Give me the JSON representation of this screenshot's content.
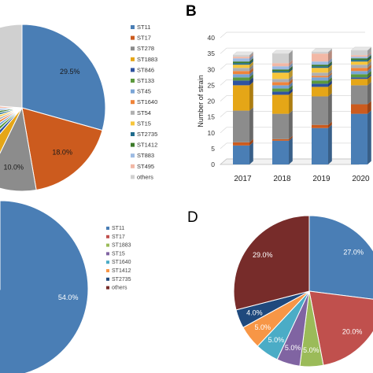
{
  "panels": {
    "b": {
      "letter": "B"
    },
    "d": {
      "letter": "D"
    }
  },
  "chart_data": [
    {
      "id": "A",
      "type": "pie",
      "slices": [
        {
          "label": "ST11",
          "value": 29.5,
          "color": "#4a7eb5",
          "show_label": "29.5%"
        },
        {
          "label": "ST17",
          "value": 18.0,
          "color": "#cc5b1e",
          "show_label": "18.0%"
        },
        {
          "label": "ST278",
          "value": 10.0,
          "color": "#8c8c8c",
          "show_label": "10.0%"
        },
        {
          "label": "ST1883",
          "value": 4.0,
          "color": "#e5a617",
          "show_label": ""
        },
        {
          "label": "ST846",
          "value": 1.5,
          "color": "#2f53a0",
          "show_label": ""
        },
        {
          "label": "ST133",
          "value": 1.5,
          "color": "#5c9a3d",
          "show_label": ""
        },
        {
          "label": "ST45",
          "value": 1.5,
          "color": "#7aa5d6",
          "show_label": ""
        },
        {
          "label": "ST1640",
          "value": 1.5,
          "color": "#f0843a",
          "show_label": ""
        },
        {
          "label": "ST54",
          "value": 1.5,
          "color": "#b0b0b0",
          "show_label": ""
        },
        {
          "label": "ST15",
          "value": 1.5,
          "color": "#f7c63c",
          "show_label": ""
        },
        {
          "label": "ST2735",
          "value": 1.5,
          "color": "#1f6b8c",
          "show_label": ""
        },
        {
          "label": "ST1412",
          "value": 1.5,
          "color": "#3c7a2a",
          "show_label": ""
        },
        {
          "label": "ST883",
          "value": 1.5,
          "color": "#9dbbe3",
          "show_label": ""
        },
        {
          "label": "ST495",
          "value": 1.5,
          "color": "#f2b8a6",
          "show_label": ""
        },
        {
          "label": "others",
          "value": 24.0,
          "color": "#d0d0d0",
          "show_label": ""
        }
      ]
    },
    {
      "id": "B",
      "type": "bar",
      "stacked": true,
      "ylabel": "Number of strain",
      "ylim": [
        0,
        40
      ],
      "yticks": [
        0,
        5,
        10,
        15,
        20,
        25,
        30,
        35,
        40
      ],
      "categories": [
        "2017",
        "2018",
        "2019",
        "2020"
      ],
      "series": [
        {
          "name": "ST11",
          "color": "#4a7eb5",
          "values": [
            6,
            7.5,
            11.5,
            16
          ]
        },
        {
          "name": "ST17",
          "color": "#cc5b1e",
          "values": [
            1,
            0.5,
            1,
            3
          ]
        },
        {
          "name": "ST278",
          "color": "#8c8c8c",
          "values": [
            10,
            8,
            9,
            6
          ]
        },
        {
          "name": "ST1883",
          "color": "#e5a617",
          "values": [
            8,
            6,
            3,
            2
          ]
        },
        {
          "name": "ST846",
          "color": "#2f53a0",
          "values": [
            1.5,
            1,
            1,
            0.5
          ]
        },
        {
          "name": "ST133",
          "color": "#5c9a3d",
          "values": [
            1,
            1,
            1,
            1
          ]
        },
        {
          "name": "ST45",
          "color": "#7aa5d6",
          "values": [
            1,
            1,
            1,
            1
          ]
        },
        {
          "name": "ST1640",
          "color": "#f0843a",
          "values": [
            1,
            1,
            0.5,
            1
          ]
        },
        {
          "name": "ST54",
          "color": "#b0b0b0",
          "values": [
            1,
            1,
            1,
            1
          ]
        },
        {
          "name": "ST15",
          "color": "#f7c63c",
          "values": [
            1,
            2,
            1.5,
            1
          ]
        },
        {
          "name": "ST2735",
          "color": "#1f6b8c",
          "values": [
            0.5,
            0.5,
            0.5,
            0.5
          ]
        },
        {
          "name": "ST1412",
          "color": "#3c7a2a",
          "values": [
            0.5,
            0.5,
            0.5,
            0.5
          ]
        },
        {
          "name": "ST883",
          "color": "#9dbbe3",
          "values": [
            1,
            1,
            1,
            0.5
          ]
        },
        {
          "name": "ST495",
          "color": "#f2b8a6",
          "values": [
            0.5,
            1,
            2.5,
            0.5
          ]
        },
        {
          "name": "others",
          "color": "#d0d0d0",
          "values": [
            0.5,
            3,
            0.5,
            1.5
          ]
        }
      ]
    },
    {
      "id": "C",
      "type": "pie",
      "slices": [
        {
          "label": "ST11",
          "value": 54.0,
          "color": "#4a7eb5",
          "show_label": "54.0%"
        },
        {
          "label": "ST17",
          "value": 3.0,
          "color": "#c0504d",
          "show_label": ""
        },
        {
          "label": "ST1883",
          "value": 1.0,
          "color": "#9bbb59",
          "show_label": ""
        },
        {
          "label": "ST15",
          "value": 1.0,
          "color": "#8064a2",
          "show_label": ""
        },
        {
          "label": "ST1640",
          "value": 1.0,
          "color": "#4bacc6",
          "show_label": ""
        },
        {
          "label": "ST1412",
          "value": 1.0,
          "color": "#f79646",
          "show_label": ""
        },
        {
          "label": "ST2735",
          "value": 1.0,
          "color": "#1f497d",
          "show_label": ""
        },
        {
          "label": "others",
          "value": 38.0,
          "color": "#772c2a",
          "show_label": ""
        }
      ]
    },
    {
      "id": "D",
      "type": "pie",
      "slices": [
        {
          "label": "",
          "value": 27.0,
          "color": "#4a7eb5",
          "show_label": "27.0%"
        },
        {
          "label": "",
          "value": 20.0,
          "color": "#c0504d",
          "show_label": "20.0%"
        },
        {
          "label": "",
          "value": 5.0,
          "color": "#9bbb59",
          "show_label": "5.0%"
        },
        {
          "label": "",
          "value": 5.0,
          "color": "#8064a2",
          "show_label": "5.0%"
        },
        {
          "label": "",
          "value": 5.0,
          "color": "#4bacc6",
          "show_label": "5.0%"
        },
        {
          "label": "",
          "value": 5.0,
          "color": "#f79646",
          "show_label": "5.0%"
        },
        {
          "label": "",
          "value": 4.0,
          "color": "#1f497d",
          "show_label": "4.0%"
        },
        {
          "label": "",
          "value": 29.0,
          "color": "#772c2a",
          "show_label": "29.0%"
        }
      ]
    }
  ]
}
